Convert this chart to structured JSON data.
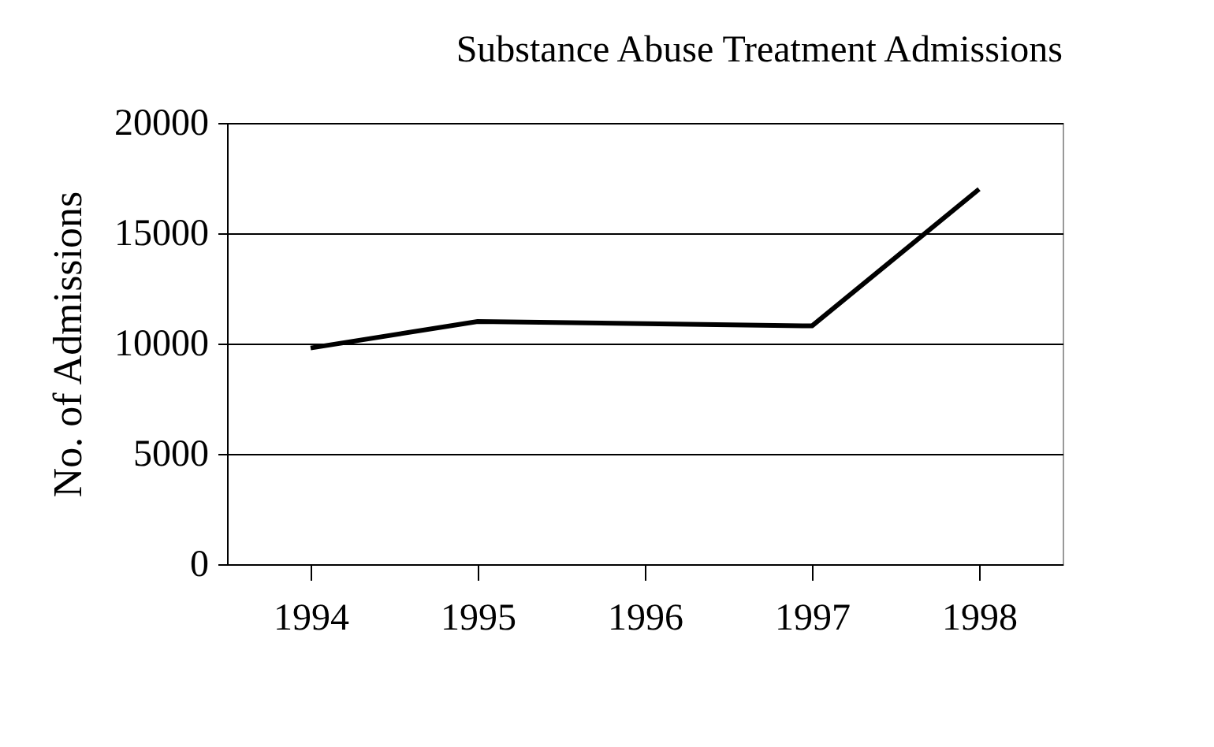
{
  "chart_data": {
    "type": "line",
    "title": "Substance Abuse Treatment Admissions",
    "ylabel": "No. of Admissions",
    "categories": [
      "1994",
      "1995",
      "1996",
      "1997",
      "1998"
    ],
    "series": [
      {
        "color": "#000000",
        "values": [
          9800,
          11000,
          10900,
          10800,
          17000
        ]
      }
    ],
    "ylim": [
      0,
      20000
    ],
    "yticks": [
      0,
      5000,
      10000,
      15000,
      20000
    ],
    "grid": "y",
    "marker": "none",
    "line_style": "solid"
  }
}
